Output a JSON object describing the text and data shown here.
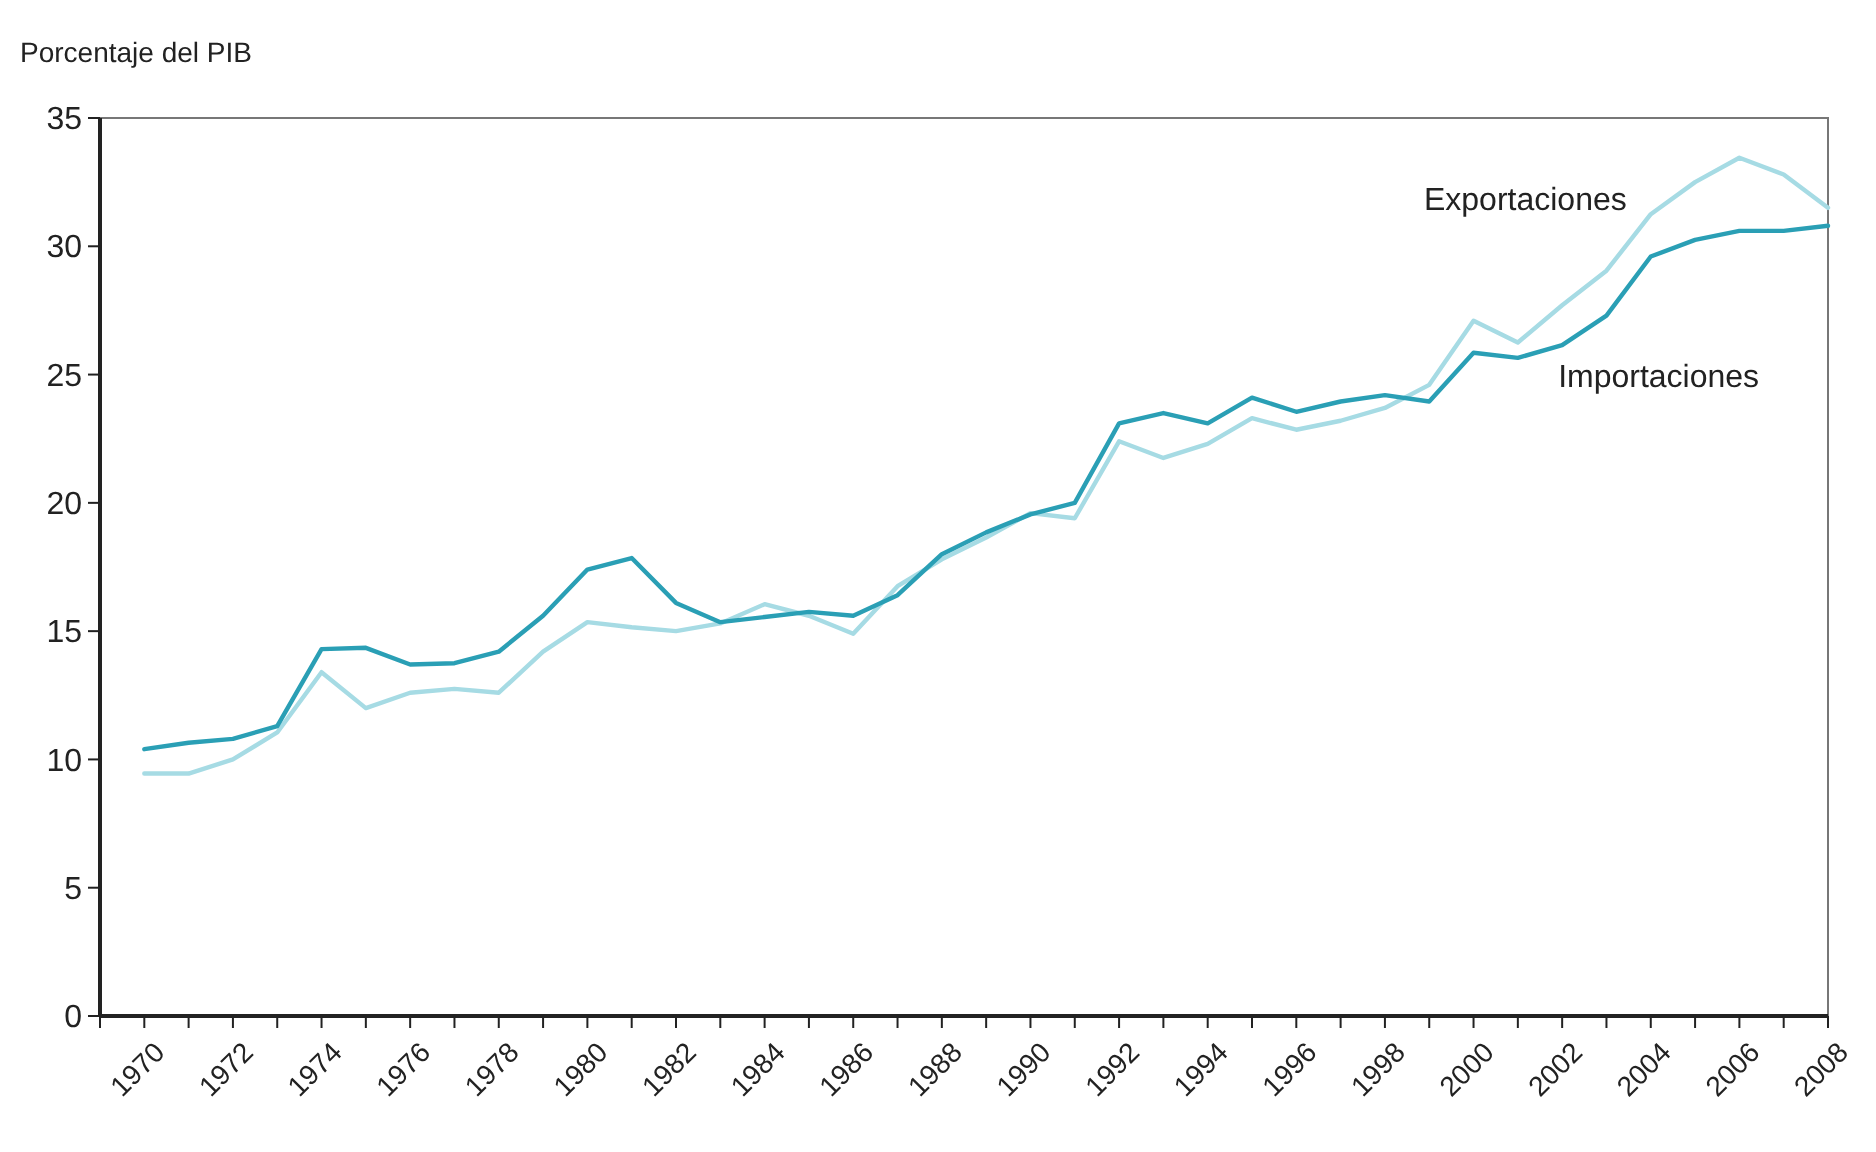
{
  "chart_data": {
    "type": "line",
    "ylabel": "Porcentaje del PIB",
    "x": [
      1970,
      1971,
      1972,
      1973,
      1974,
      1975,
      1976,
      1977,
      1978,
      1979,
      1980,
      1981,
      1982,
      1983,
      1984,
      1985,
      1986,
      1987,
      1988,
      1989,
      1990,
      1991,
      1992,
      1993,
      1994,
      1995,
      1996,
      1997,
      1998,
      1999,
      2000,
      2001,
      2002,
      2003,
      2004,
      2005,
      2006,
      2007,
      2008
    ],
    "series": [
      {
        "name": "Exportaciones",
        "color": "#a6dbe4",
        "values": [
          9.45,
          9.45,
          10.0,
          11.05,
          13.4,
          12.0,
          12.6,
          12.75,
          12.6,
          14.2,
          15.35,
          15.15,
          15.0,
          15.3,
          16.05,
          15.6,
          14.9,
          16.75,
          17.8,
          18.65,
          19.6,
          19.4,
          22.4,
          21.75,
          22.3,
          23.3,
          22.85,
          23.2,
          23.7,
          24.6,
          27.1,
          26.25,
          27.7,
          29.05,
          31.25,
          32.5,
          33.45,
          32.8,
          31.5
        ]
      },
      {
        "name": "Importaciones",
        "color": "#2a9fb5",
        "values": [
          10.4,
          10.65,
          10.8,
          11.3,
          14.3,
          14.35,
          13.7,
          13.75,
          14.2,
          15.6,
          17.4,
          17.85,
          16.1,
          15.35,
          15.55,
          15.75,
          15.6,
          16.4,
          18.0,
          18.85,
          19.55,
          20.0,
          23.1,
          23.5,
          23.1,
          24.1,
          23.55,
          23.95,
          24.2,
          23.95,
          25.85,
          25.65,
          26.15,
          27.3,
          29.6,
          30.25,
          30.6,
          30.6,
          30.8
        ]
      }
    ],
    "xlim": [
      1969,
      2008
    ],
    "xticks": [
      {
        "value": 1969,
        "label": null
      },
      1970,
      {
        "value": 1971,
        "label": null
      },
      1972,
      {
        "value": 1973,
        "label": null
      },
      1974,
      {
        "value": 1975,
        "label": null
      },
      1976,
      {
        "value": 1977,
        "label": null
      },
      1978,
      {
        "value": 1979,
        "label": null
      },
      1980,
      {
        "value": 1981,
        "label": null
      },
      1982,
      {
        "value": 1983,
        "label": null
      },
      1984,
      {
        "value": 1985,
        "label": null
      },
      1986,
      {
        "value": 1987,
        "label": null
      },
      1988,
      {
        "value": 1989,
        "label": null
      },
      1990,
      {
        "value": 1991,
        "label": null
      },
      1992,
      {
        "value": 1993,
        "label": null
      },
      1994,
      {
        "value": 1995,
        "label": null
      },
      1996,
      {
        "value": 1997,
        "label": null
      },
      1998,
      {
        "value": 1999,
        "label": null
      },
      2000,
      {
        "value": 2001,
        "label": null
      },
      2002,
      {
        "value": 2003,
        "label": null
      },
      2004,
      {
        "value": 2005,
        "label": null
      },
      2006,
      {
        "value": 2007,
        "label": null
      },
      2008
    ],
    "ylim": [
      0,
      35
    ],
    "yticks": [
      0,
      5,
      10,
      15,
      20,
      25,
      30,
      35
    ],
    "grid": false,
    "legend": false,
    "marker": "none",
    "line_style": "solid"
  }
}
